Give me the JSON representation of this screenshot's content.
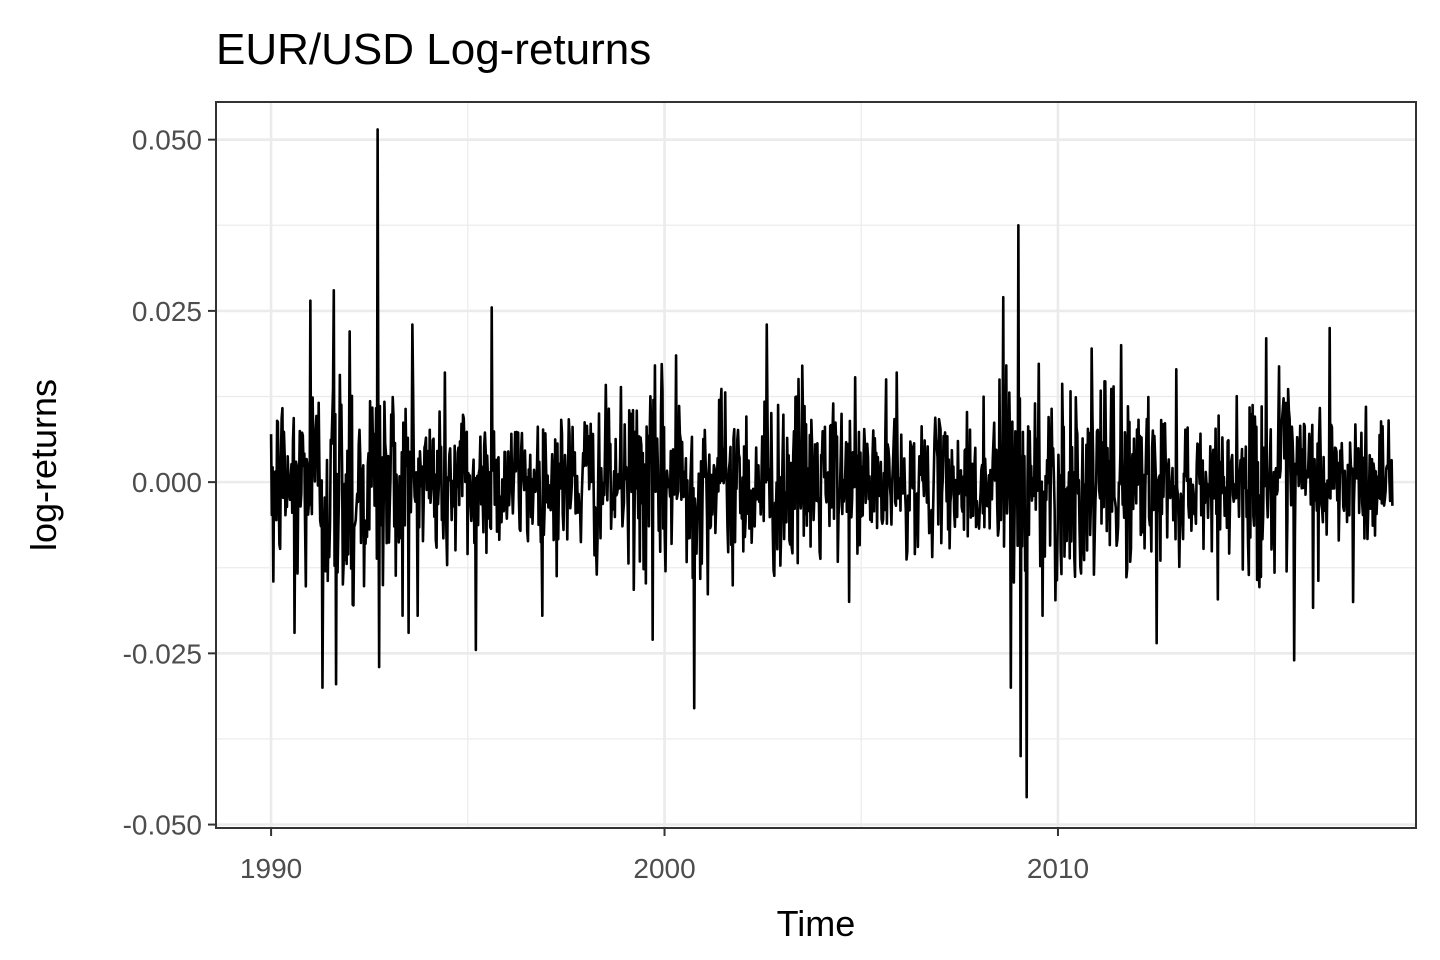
{
  "chart_data": {
    "type": "line",
    "title": "EUR/USD Log-returns",
    "xlabel": "Time",
    "ylabel": "log-returns",
    "xlim": [
      1988.6,
      2019.1
    ],
    "ylim": [
      -0.0505,
      0.0555
    ],
    "x_ticks": [
      1990,
      2000,
      2010
    ],
    "x_tick_labels": [
      "1990",
      "2000",
      "2010"
    ],
    "y_ticks": [
      -0.05,
      -0.025,
      0,
      0.025,
      0.05
    ],
    "y_tick_labels": [
      "-0.050",
      "-0.025",
      "0.000",
      "0.025",
      "0.050"
    ],
    "grid": true,
    "legend": "none",
    "series": [
      {
        "color": "#000000",
        "x_start": 1990.0,
        "x_end": 2018.5,
        "sampling": "weekly",
        "volatility_profile": [
          [
            1990.0,
            0.0065
          ],
          [
            1991.0,
            0.0085
          ],
          [
            1992.0,
            0.0095
          ],
          [
            1993.0,
            0.008
          ],
          [
            1994.0,
            0.007
          ],
          [
            1995.0,
            0.0068
          ],
          [
            1996.0,
            0.005
          ],
          [
            1997.0,
            0.0055
          ],
          [
            1999.0,
            0.006
          ],
          [
            2000.0,
            0.0075
          ],
          [
            2001.0,
            0.0065
          ],
          [
            2003.0,
            0.0065
          ],
          [
            2005.0,
            0.006
          ],
          [
            2006.5,
            0.0045
          ],
          [
            2007.5,
            0.004
          ],
          [
            2008.5,
            0.0085
          ],
          [
            2009.5,
            0.009
          ],
          [
            2010.5,
            0.0075
          ],
          [
            2012.0,
            0.0065
          ],
          [
            2013.5,
            0.005
          ],
          [
            2014.5,
            0.004
          ],
          [
            2015.0,
            0.0075
          ],
          [
            2016.0,
            0.0065
          ],
          [
            2018.5,
            0.0045
          ]
        ],
        "extremes": [
          {
            "x": 1990.0,
            "y": 0.007
          },
          {
            "x": 1990.05,
            "y": -0.0145
          },
          {
            "x": 1990.6,
            "y": -0.022
          },
          {
            "x": 1991.0,
            "y": 0.0265
          },
          {
            "x": 1991.3,
            "y": -0.03
          },
          {
            "x": 1991.6,
            "y": 0.028
          },
          {
            "x": 1991.65,
            "y": -0.0295
          },
          {
            "x": 1992.0,
            "y": 0.022
          },
          {
            "x": 1992.1,
            "y": -0.018
          },
          {
            "x": 1992.7,
            "y": 0.0515
          },
          {
            "x": 1992.75,
            "y": -0.027
          },
          {
            "x": 1993.5,
            "y": -0.022
          },
          {
            "x": 1993.6,
            "y": 0.023
          },
          {
            "x": 1995.2,
            "y": -0.0245
          },
          {
            "x": 1995.6,
            "y": 0.0255
          },
          {
            "x": 1999.7,
            "y": -0.023
          },
          {
            "x": 2000.3,
            "y": 0.0185
          },
          {
            "x": 2000.75,
            "y": -0.033
          },
          {
            "x": 2002.6,
            "y": 0.023
          },
          {
            "x": 2003.5,
            "y": 0.017
          },
          {
            "x": 2005.9,
            "y": 0.016
          },
          {
            "x": 2008.6,
            "y": 0.027
          },
          {
            "x": 2008.8,
            "y": -0.03
          },
          {
            "x": 2009.0,
            "y": 0.0375
          },
          {
            "x": 2009.05,
            "y": -0.04
          },
          {
            "x": 2009.2,
            "y": -0.046
          },
          {
            "x": 2011.6,
            "y": 0.02
          },
          {
            "x": 2012.5,
            "y": -0.0235
          },
          {
            "x": 2015.3,
            "y": 0.021
          },
          {
            "x": 2016.0,
            "y": -0.026
          },
          {
            "x": 2016.9,
            "y": 0.0225
          },
          {
            "x": 2017.5,
            "y": -0.0175
          },
          {
            "x": 2018.4,
            "y": 0.009
          }
        ]
      }
    ]
  }
}
